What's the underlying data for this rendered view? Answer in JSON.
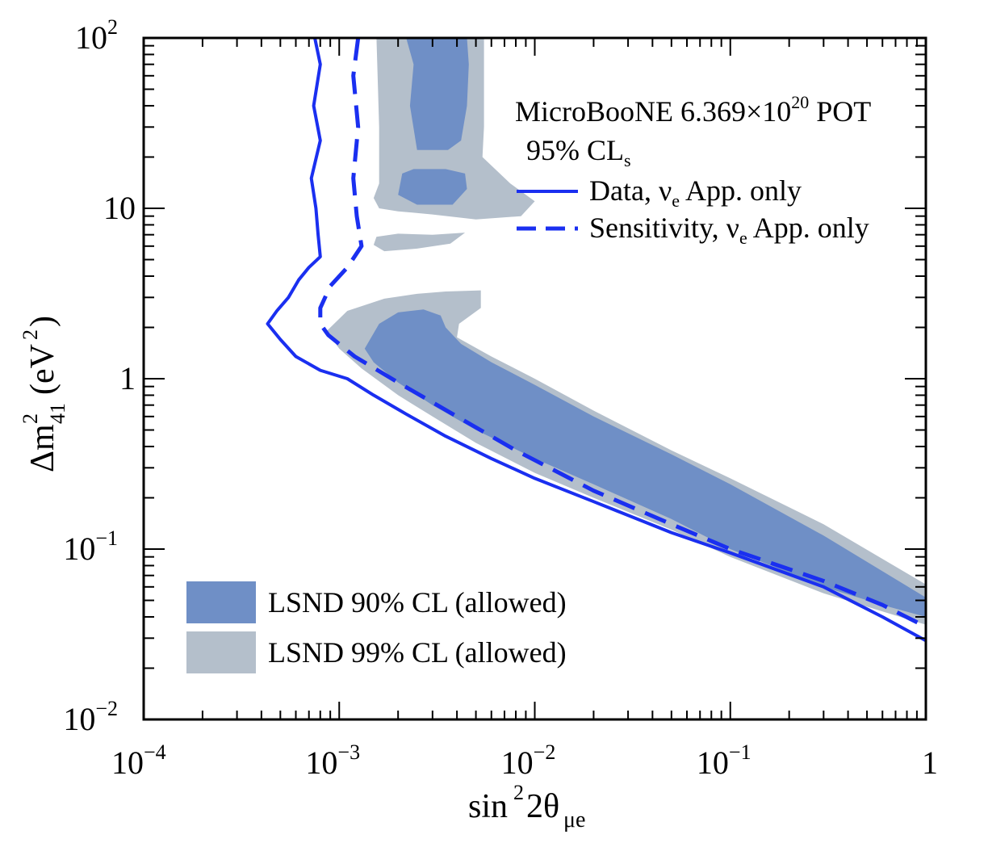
{
  "chart_data": {
    "type": "line",
    "xscale": "log",
    "yscale": "log",
    "xlim": [
      0.0001,
      1
    ],
    "ylim": [
      0.01,
      100
    ],
    "xlabel": "sin²2θμe",
    "ylabel": "Δm²₄₁ (eV²)",
    "xticks": [
      {
        "base": "10",
        "exp": "−4"
      },
      {
        "base": "10",
        "exp": "−3"
      },
      {
        "base": "10",
        "exp": "−2"
      },
      {
        "base": "10",
        "exp": "−1"
      },
      {
        "base": "1",
        "exp": ""
      }
    ],
    "yticks": [
      {
        "base": "10",
        "exp": "−2"
      },
      {
        "base": "10",
        "exp": "−1"
      },
      {
        "base": "1",
        "exp": ""
      },
      {
        "base": "10",
        "exp": ""
      },
      {
        "base": "10",
        "exp": "2"
      }
    ],
    "annotation": {
      "line1_text": "MicroBooNE  6.369×10",
      "line1_sup": "20",
      "line1_suffix": " POT",
      "line2_text": "95% CL",
      "line2_sub": "s"
    },
    "series": [
      {
        "name": "Data, νe App. only",
        "name_parts": {
          "pre": "Data, ν",
          "sub": "e",
          "post": " App. only"
        },
        "style": "solid",
        "color": "#1a2ff0",
        "points": [
          [
            0.00075,
            100
          ],
          [
            0.0008,
            70
          ],
          [
            0.00074,
            40
          ],
          [
            0.0008,
            25
          ],
          [
            0.00072,
            15
          ],
          [
            0.00076,
            10
          ],
          [
            0.00078,
            7
          ],
          [
            0.0008,
            5.2
          ],
          [
            0.0007,
            4.5
          ],
          [
            0.00062,
            3.8
          ],
          [
            0.00055,
            3
          ],
          [
            0.00048,
            2.5
          ],
          [
            0.00043,
            2.1
          ],
          [
            0.0005,
            1.7
          ],
          [
            0.0006,
            1.35
          ],
          [
            0.0008,
            1.12
          ],
          [
            0.0011,
            1.0
          ],
          [
            0.0015,
            0.8
          ],
          [
            0.0022,
            0.62
          ],
          [
            0.0035,
            0.46
          ],
          [
            0.006,
            0.34
          ],
          [
            0.01,
            0.26
          ],
          [
            0.02,
            0.19
          ],
          [
            0.05,
            0.125
          ],
          [
            0.1,
            0.095
          ],
          [
            0.3,
            0.06
          ],
          [
            0.6,
            0.04
          ],
          [
            1.0,
            0.029
          ]
        ]
      },
      {
        "name": "Sensitivity, νe App. only",
        "name_parts": {
          "pre": "Sensitivity, ν",
          "sub": "e",
          "post": " App. only"
        },
        "style": "dashed",
        "color": "#1a2ff0",
        "points": [
          [
            0.00125,
            100
          ],
          [
            0.00118,
            60
          ],
          [
            0.00125,
            30
          ],
          [
            0.00118,
            15
          ],
          [
            0.00123,
            9
          ],
          [
            0.0013,
            6
          ],
          [
            0.0011,
            4.5
          ],
          [
            0.0009,
            3.5
          ],
          [
            0.0008,
            2.6
          ],
          [
            0.0008,
            2.1
          ],
          [
            0.00088,
            1.8
          ],
          [
            0.0012,
            1.35
          ],
          [
            0.002,
            0.95
          ],
          [
            0.004,
            0.6
          ],
          [
            0.008,
            0.38
          ],
          [
            0.02,
            0.22
          ],
          [
            0.05,
            0.14
          ],
          [
            0.1,
            0.1
          ],
          [
            0.3,
            0.065
          ],
          [
            0.6,
            0.047
          ],
          [
            1.0,
            0.035
          ]
        ]
      }
    ],
    "regions": [
      {
        "name": "LSND 99% CL (allowed)",
        "color": "#b4bfcb",
        "polygons": [
          [
            [
              0.00155,
              100
            ],
            [
              0.0055,
              100
            ],
            [
              0.0055,
              30
            ],
            [
              0.0054,
              20
            ],
            [
              0.0075,
              14
            ],
            [
              0.01,
              11
            ],
            [
              0.0085,
              9
            ],
            [
              0.005,
              8.6
            ],
            [
              0.003,
              9.2
            ],
            [
              0.002,
              9.6
            ],
            [
              0.0016,
              10
            ],
            [
              0.0015,
              11.5
            ],
            [
              0.0016,
              14
            ],
            [
              0.0016,
              30
            ]
          ],
          [
            [
              0.00155,
              6.8
            ],
            [
              0.002,
              7.1
            ],
            [
              0.003,
              7
            ],
            [
              0.0044,
              7.2
            ],
            [
              0.0037,
              6.2
            ],
            [
              0.0025,
              5.8
            ],
            [
              0.0017,
              5.6
            ],
            [
              0.0015,
              6.1
            ]
          ],
          [
            [
              0.00086,
              1.9
            ],
            [
              0.0011,
              2.5
            ],
            [
              0.0017,
              2.95
            ],
            [
              0.0025,
              3.15
            ],
            [
              0.0035,
              3.25
            ],
            [
              0.0053,
              3.3
            ],
            [
              0.0053,
              2.6
            ],
            [
              0.0041,
              2.1
            ],
            [
              0.004,
              1.75
            ],
            [
              0.006,
              1.35
            ],
            [
              0.01,
              1.0
            ],
            [
              0.02,
              0.65
            ],
            [
              0.05,
              0.38
            ],
            [
              0.1,
              0.26
            ],
            [
              0.3,
              0.14
            ],
            [
              1.0,
              0.062
            ],
            [
              1.0,
              0.036
            ],
            [
              0.6,
              0.043
            ],
            [
              0.3,
              0.055
            ],
            [
              0.1,
              0.09
            ],
            [
              0.05,
              0.13
            ],
            [
              0.02,
              0.2
            ],
            [
              0.01,
              0.28
            ],
            [
              0.005,
              0.42
            ],
            [
              0.003,
              0.6
            ],
            [
              0.002,
              0.8
            ],
            [
              0.0013,
              1.15
            ],
            [
              0.001,
              1.5
            ]
          ]
        ]
      },
      {
        "name": "LSND 90% CL (allowed)",
        "color": "#6f8fc6",
        "polygons": [
          [
            [
              0.0022,
              100
            ],
            [
              0.0045,
              100
            ],
            [
              0.0046,
              70
            ],
            [
              0.0045,
              40
            ],
            [
              0.0042,
              25
            ],
            [
              0.0036,
              22
            ],
            [
              0.0025,
              22
            ],
            [
              0.0023,
              40
            ],
            [
              0.0024,
              70
            ]
          ],
          [
            [
              0.0021,
              16
            ],
            [
              0.0024,
              17
            ],
            [
              0.0035,
              17
            ],
            [
              0.0044,
              16
            ],
            [
              0.0045,
              13
            ],
            [
              0.0038,
              10.5
            ],
            [
              0.0025,
              10.5
            ],
            [
              0.002,
              12
            ]
          ],
          [
            [
              0.00135,
              1.5
            ],
            [
              0.0016,
              2.1
            ],
            [
              0.002,
              2.45
            ],
            [
              0.0027,
              2.55
            ],
            [
              0.0033,
              2.35
            ],
            [
              0.0035,
              2.0
            ],
            [
              0.0042,
              1.6
            ],
            [
              0.006,
              1.25
            ],
            [
              0.01,
              0.92
            ],
            [
              0.02,
              0.6
            ],
            [
              0.05,
              0.36
            ],
            [
              0.1,
              0.24
            ],
            [
              0.3,
              0.12
            ],
            [
              1.0,
              0.052
            ],
            [
              1.0,
              0.04
            ],
            [
              0.6,
              0.047
            ],
            [
              0.3,
              0.06
            ],
            [
              0.1,
              0.1
            ],
            [
              0.05,
              0.15
            ],
            [
              0.02,
              0.24
            ],
            [
              0.01,
              0.34
            ],
            [
              0.005,
              0.5
            ],
            [
              0.003,
              0.7
            ],
            [
              0.002,
              0.95
            ],
            [
              0.0015,
              1.25
            ]
          ]
        ]
      }
    ],
    "legend": {
      "upper_placement": "top-right",
      "lower_placement": "bottom-left",
      "lower_entries": [
        "LSND 90% CL (allowed)",
        "LSND 99% CL (allowed)"
      ]
    }
  }
}
